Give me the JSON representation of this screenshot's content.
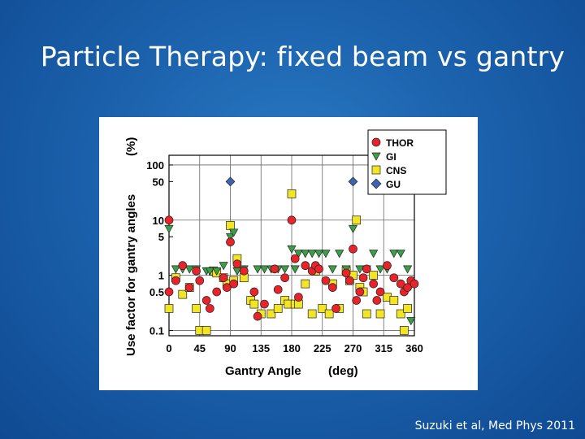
{
  "slide": {
    "title": "Particle Therapy: fixed beam vs gantry",
    "citation": "Suzuki et al, Med Phys 2011"
  },
  "chart_data": {
    "type": "scatter",
    "xlabel": "Gantry Angle",
    "xunit": "(deg)",
    "ylabel": "Use factor for gantry angles",
    "yunit": "(%)",
    "x_ticks": [
      0,
      45,
      90,
      135,
      180,
      225,
      270,
      315,
      360
    ],
    "y_ticks": [
      {
        "value": 100,
        "label": "100"
      },
      {
        "value": 50,
        "label": "50"
      },
      {
        "value": 10,
        "label": "10"
      },
      {
        "value": 5,
        "label": "5"
      },
      {
        "value": 1,
        "label": "1"
      },
      {
        "value": 0.5,
        "label": "0.5"
      },
      {
        "value": 0.1,
        "label": "0.1"
      }
    ],
    "xlim": [
      0,
      360
    ],
    "ylim": [
      0.08,
      150
    ],
    "yscale": "log",
    "grid": true,
    "legend_position": "top-right",
    "series": [
      {
        "name": "THOR",
        "marker": "circle",
        "color": "#e8232a",
        "points": [
          [
            0,
            10
          ],
          [
            0,
            0.5
          ],
          [
            10,
            0.8
          ],
          [
            20,
            1.5
          ],
          [
            30,
            0.6
          ],
          [
            40,
            1.2
          ],
          [
            45,
            0.8
          ],
          [
            55,
            0.35
          ],
          [
            60,
            0.25
          ],
          [
            70,
            0.5
          ],
          [
            80,
            0.9
          ],
          [
            85,
            0.6
          ],
          [
            90,
            4
          ],
          [
            95,
            0.7
          ],
          [
            100,
            1.6
          ],
          [
            110,
            1.2
          ],
          [
            125,
            0.5
          ],
          [
            130,
            0.18
          ],
          [
            140,
            0.3
          ],
          [
            155,
            1.3
          ],
          [
            160,
            0.55
          ],
          [
            170,
            0.9
          ],
          [
            180,
            10
          ],
          [
            185,
            2
          ],
          [
            190,
            0.4
          ],
          [
            200,
            1.5
          ],
          [
            210,
            1.2
          ],
          [
            215,
            1.5
          ],
          [
            220,
            1.3
          ],
          [
            230,
            0.8
          ],
          [
            240,
            0.6
          ],
          [
            245,
            0.25
          ],
          [
            260,
            1.1
          ],
          [
            265,
            0.8
          ],
          [
            270,
            3
          ],
          [
            275,
            0.35
          ],
          [
            280,
            0.5
          ],
          [
            285,
            0.9
          ],
          [
            290,
            1.3
          ],
          [
            300,
            0.7
          ],
          [
            305,
            0.35
          ],
          [
            310,
            0.5
          ],
          [
            320,
            1.5
          ],
          [
            330,
            0.9
          ],
          [
            340,
            0.7
          ],
          [
            345,
            0.5
          ],
          [
            350,
            0.6
          ],
          [
            355,
            0.8
          ],
          [
            360,
            0.7
          ]
        ]
      },
      {
        "name": "GI",
        "marker": "triangle",
        "color": "#3aa047",
        "points": [
          [
            0,
            7
          ],
          [
            10,
            1.3
          ],
          [
            20,
            1.3
          ],
          [
            30,
            1.3
          ],
          [
            40,
            1.3
          ],
          [
            55,
            1.2
          ],
          [
            60,
            1.2
          ],
          [
            70,
            1.2
          ],
          [
            80,
            1.5
          ],
          [
            90,
            5
          ],
          [
            95,
            6
          ],
          [
            100,
            1.2
          ],
          [
            110,
            1.3
          ],
          [
            130,
            1.3
          ],
          [
            140,
            1.3
          ],
          [
            150,
            1.3
          ],
          [
            160,
            1.3
          ],
          [
            170,
            1.3
          ],
          [
            180,
            3
          ],
          [
            185,
            1.3
          ],
          [
            190,
            2.5
          ],
          [
            200,
            2.5
          ],
          [
            210,
            2.5
          ],
          [
            220,
            2.5
          ],
          [
            230,
            2.5
          ],
          [
            240,
            1.3
          ],
          [
            250,
            2.5
          ],
          [
            260,
            1.3
          ],
          [
            270,
            7
          ],
          [
            280,
            1.3
          ],
          [
            290,
            1.3
          ],
          [
            300,
            2.5
          ],
          [
            310,
            1.3
          ],
          [
            320,
            1.3
          ],
          [
            330,
            2.5
          ],
          [
            340,
            2.5
          ],
          [
            350,
            1.3
          ],
          [
            355,
            0.15
          ]
        ]
      },
      {
        "name": "CNS",
        "marker": "square",
        "color": "#f2e526",
        "points": [
          [
            0,
            0.25
          ],
          [
            10,
            0.9
          ],
          [
            20,
            0.45
          ],
          [
            30,
            0.6
          ],
          [
            40,
            0.25
          ],
          [
            45,
            0.1
          ],
          [
            55,
            0.1
          ],
          [
            65,
            1.2
          ],
          [
            70,
            1.1
          ],
          [
            80,
            0.9
          ],
          [
            85,
            0.7
          ],
          [
            90,
            8
          ],
          [
            95,
            0.8
          ],
          [
            100,
            2
          ],
          [
            110,
            0.9
          ],
          [
            120,
            0.35
          ],
          [
            125,
            0.3
          ],
          [
            135,
            0.2
          ],
          [
            150,
            0.2
          ],
          [
            160,
            0.25
          ],
          [
            170,
            0.35
          ],
          [
            175,
            0.3
          ],
          [
            180,
            30
          ],
          [
            185,
            0.3
          ],
          [
            190,
            0.3
          ],
          [
            200,
            0.7
          ],
          [
            210,
            0.2
          ],
          [
            215,
            1.2
          ],
          [
            225,
            0.25
          ],
          [
            235,
            0.2
          ],
          [
            240,
            0.7
          ],
          [
            250,
            0.25
          ],
          [
            260,
            1.2
          ],
          [
            265,
            0.8
          ],
          [
            270,
            1
          ],
          [
            275,
            10
          ],
          [
            280,
            0.6
          ],
          [
            285,
            0.5
          ],
          [
            290,
            0.2
          ],
          [
            300,
            1
          ],
          [
            310,
            0.2
          ],
          [
            320,
            0.4
          ],
          [
            330,
            0.35
          ],
          [
            340,
            0.2
          ],
          [
            345,
            0.1
          ],
          [
            350,
            0.25
          ]
        ]
      },
      {
        "name": "GU",
        "marker": "diamond",
        "color": "#3c64b4",
        "points": [
          [
            90,
            50
          ],
          [
            270,
            50
          ]
        ]
      }
    ]
  }
}
